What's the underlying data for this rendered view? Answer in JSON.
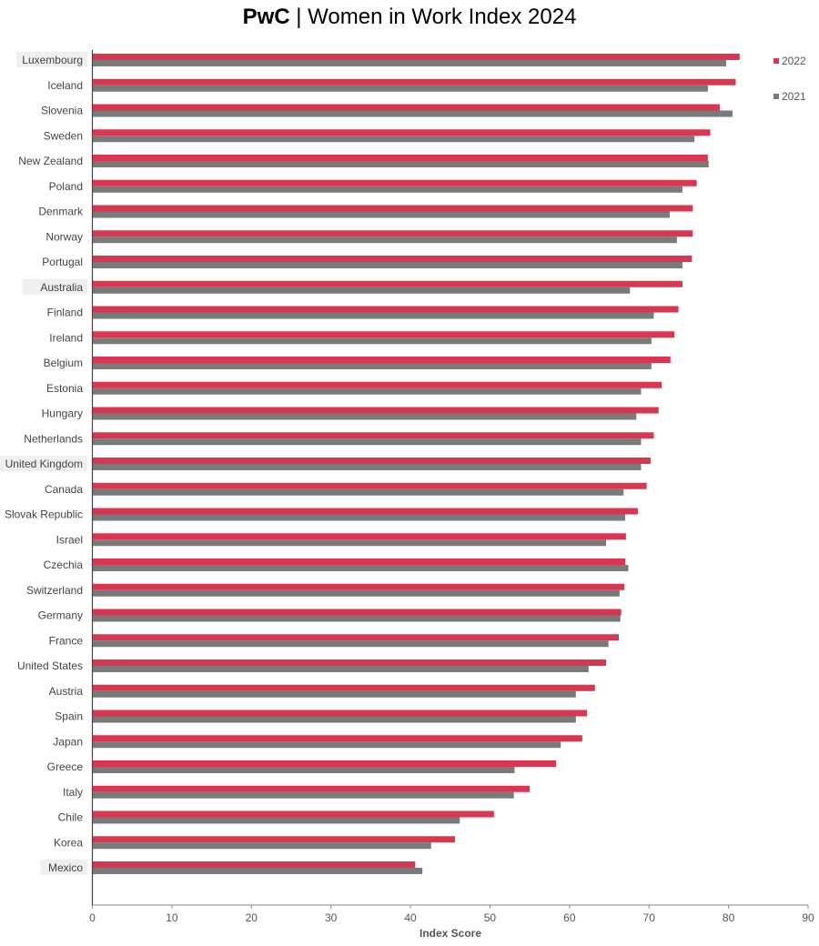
{
  "chart_data": {
    "type": "bar",
    "orientation": "horizontal",
    "title_brand": "PwC",
    "title_separator": " | ",
    "title": "Women in Work Index 2024",
    "xlabel": "Index Score",
    "ylabel": "",
    "xlim": [
      0,
      90
    ],
    "xticks": [
      0,
      10,
      20,
      30,
      40,
      50,
      60,
      70,
      80,
      90
    ],
    "grid": false,
    "legend_position": "top-right",
    "highlighted_categories": [
      "Luxembourg",
      "Australia",
      "United Kingdom",
      "Mexico"
    ],
    "categories": [
      "Luxembourg",
      "Iceland",
      "Slovenia",
      "Sweden",
      "New Zealand",
      "Poland",
      "Denmark",
      "Norway",
      "Portugal",
      "Australia",
      "Finland",
      "Ireland",
      "Belgium",
      "Estonia",
      "Hungary",
      "Netherlands",
      "United Kingdom",
      "Canada",
      "Slovak Republic",
      "Israel",
      "Czechia",
      "Switzerland",
      "Germany",
      "France",
      "United States",
      "Austria",
      "Spain",
      "Japan",
      "Greece",
      "Italy",
      "Chile",
      "Korea",
      "Mexico"
    ],
    "series": [
      {
        "name": "2022",
        "color": "#d93651",
        "values": [
          81.4,
          80.9,
          78.9,
          77.7,
          77.4,
          76.0,
          75.5,
          75.5,
          75.4,
          74.2,
          73.7,
          73.2,
          72.7,
          71.6,
          71.2,
          70.6,
          70.2,
          69.7,
          68.6,
          67.1,
          67.0,
          66.9,
          66.5,
          66.2,
          64.6,
          63.2,
          62.2,
          61.6,
          58.3,
          55.0,
          50.5,
          45.6,
          40.6
        ]
      },
      {
        "name": "2021",
        "color": "#7a7a7a",
        "values": [
          79.7,
          77.4,
          80.5,
          75.7,
          77.5,
          74.2,
          72.6,
          73.5,
          74.2,
          67.6,
          70.6,
          70.3,
          70.3,
          69.0,
          68.4,
          69.0,
          69.0,
          66.8,
          67.0,
          64.6,
          67.4,
          66.3,
          66.4,
          64.9,
          62.4,
          60.8,
          60.8,
          58.9,
          53.1,
          53.0,
          46.2,
          42.6,
          41.5
        ]
      }
    ]
  }
}
